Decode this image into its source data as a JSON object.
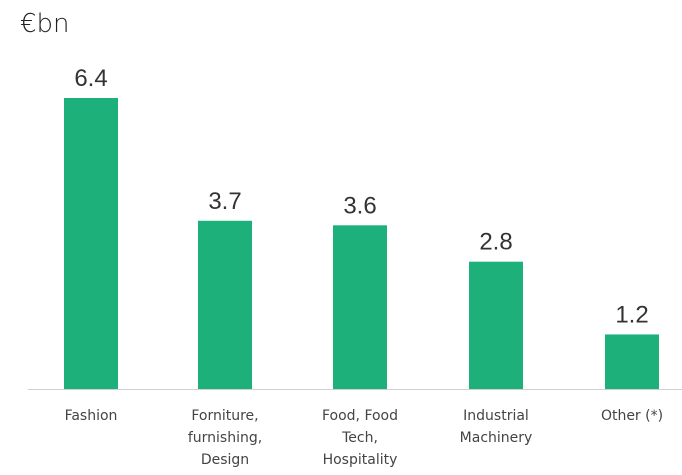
{
  "chart_data": {
    "type": "bar",
    "unit": "€bn",
    "categories": [
      [
        "Fashion"
      ],
      [
        "Forniture,",
        "furnishing,",
        "Design"
      ],
      [
        "Food, Food",
        "Tech,",
        "Hospitality"
      ],
      [
        "Industrial",
        "Machinery"
      ],
      [
        "Other (*)"
      ]
    ],
    "values": [
      6.4,
      3.7,
      3.6,
      2.8,
      1.2
    ],
    "value_labels": [
      "6.4",
      "3.7",
      "3.6",
      "2.8",
      "1.2"
    ],
    "ylim": [
      0,
      6.4
    ],
    "grid": false,
    "legend": "none",
    "colors": {
      "bar": "#1db07a",
      "axis": "#d0d0d0"
    }
  }
}
